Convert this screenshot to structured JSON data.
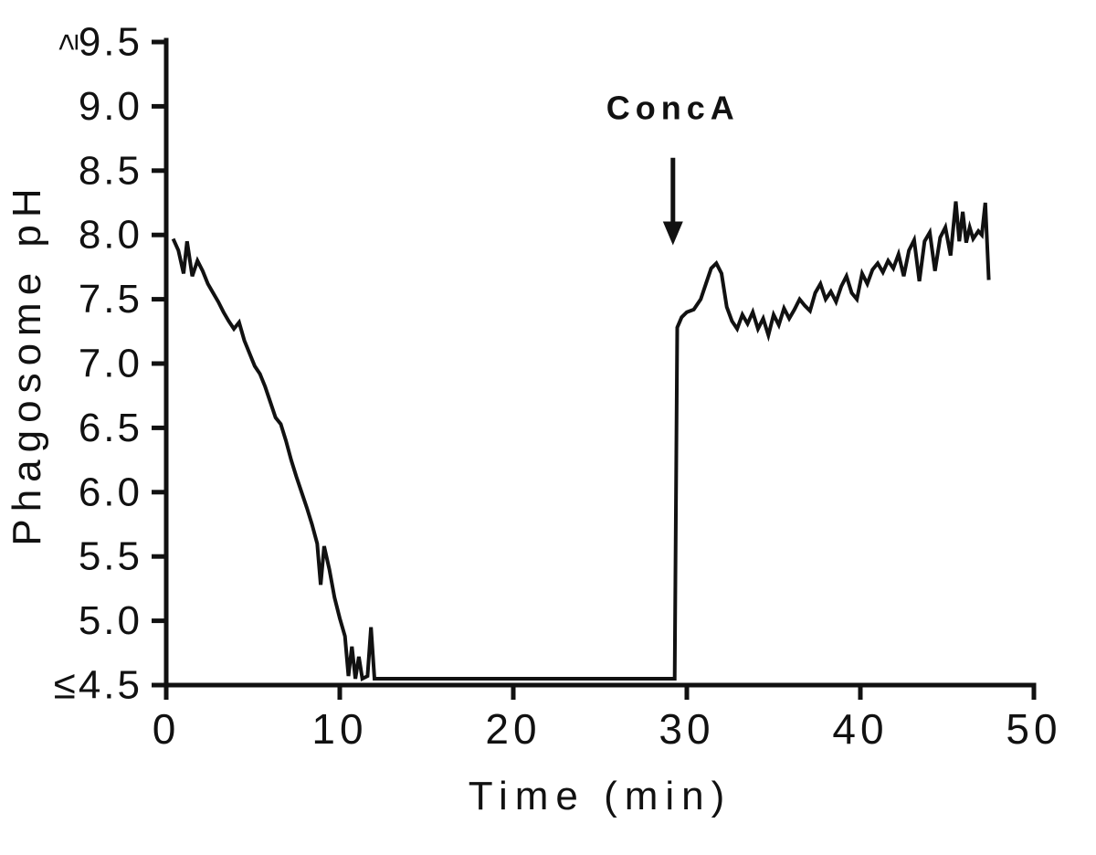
{
  "figure": {
    "background": "#ffffff",
    "line_color": "#111111",
    "axis_color": "#111111"
  },
  "chart_data": {
    "type": "line",
    "title": "",
    "xlabel": "Time (min)",
    "ylabel": "Phagosome pH",
    "xlim": [
      0,
      50
    ],
    "ylim": [
      4.5,
      9.5
    ],
    "grid": false,
    "legend": false,
    "x_ticks": [
      0,
      10,
      20,
      30,
      40,
      50
    ],
    "x_tick_labels": [
      "0",
      "10",
      "20",
      "30",
      "40",
      "50"
    ],
    "y_ticks": [
      4.5,
      5.0,
      5.5,
      6.0,
      6.5,
      7.0,
      7.5,
      8.0,
      8.5,
      9.0,
      9.5
    ],
    "y_tick_labels": [
      "≤4.5",
      "5.0",
      "5.5",
      "6.0",
      "6.5",
      "7.0",
      "7.5",
      "8.0",
      "8.5",
      "9.0",
      "9.5"
    ],
    "y_top_prefix": "≥",
    "annotation": {
      "label": "ConcA",
      "x": 29.2,
      "label_ph": 8.9,
      "arrow_from_ph": 8.6,
      "arrow_to_ph": 7.92
    },
    "series": [
      {
        "name": "Phagosome pH",
        "color": "#111111",
        "points": [
          [
            0.4,
            7.97
          ],
          [
            0.7,
            7.88
          ],
          [
            1.0,
            7.7
          ],
          [
            1.2,
            7.95
          ],
          [
            1.5,
            7.68
          ],
          [
            1.8,
            7.8
          ],
          [
            2.1,
            7.72
          ],
          [
            2.4,
            7.62
          ],
          [
            2.7,
            7.55
          ],
          [
            3.0,
            7.48
          ],
          [
            3.3,
            7.4
          ],
          [
            3.6,
            7.33
          ],
          [
            3.9,
            7.27
          ],
          [
            4.2,
            7.32
          ],
          [
            4.5,
            7.18
          ],
          [
            4.8,
            7.08
          ],
          [
            5.1,
            6.98
          ],
          [
            5.4,
            6.92
          ],
          [
            5.7,
            6.82
          ],
          [
            6.0,
            6.7
          ],
          [
            6.3,
            6.58
          ],
          [
            6.6,
            6.53
          ],
          [
            6.9,
            6.4
          ],
          [
            7.2,
            6.25
          ],
          [
            7.5,
            6.12
          ],
          [
            7.8,
            6.0
          ],
          [
            8.1,
            5.88
          ],
          [
            8.4,
            5.75
          ],
          [
            8.7,
            5.6
          ],
          [
            8.9,
            5.28
          ],
          [
            9.1,
            5.58
          ],
          [
            9.4,
            5.4
          ],
          [
            9.7,
            5.18
          ],
          [
            10.0,
            5.02
          ],
          [
            10.3,
            4.88
          ],
          [
            10.5,
            4.57
          ],
          [
            10.7,
            4.8
          ],
          [
            10.9,
            4.55
          ],
          [
            11.1,
            4.72
          ],
          [
            11.3,
            4.55
          ],
          [
            11.6,
            4.57
          ],
          [
            11.8,
            4.95
          ],
          [
            12.0,
            4.55
          ],
          [
            12.3,
            4.55
          ],
          [
            29.3,
            4.55
          ],
          [
            29.45,
            7.28
          ],
          [
            29.7,
            7.36
          ],
          [
            30.0,
            7.4
          ],
          [
            30.4,
            7.42
          ],
          [
            30.8,
            7.5
          ],
          [
            31.1,
            7.62
          ],
          [
            31.4,
            7.74
          ],
          [
            31.7,
            7.78
          ],
          [
            32.0,
            7.7
          ],
          [
            32.3,
            7.44
          ],
          [
            32.6,
            7.33
          ],
          [
            32.9,
            7.27
          ],
          [
            33.2,
            7.38
          ],
          [
            33.5,
            7.31
          ],
          [
            33.8,
            7.4
          ],
          [
            34.1,
            7.27
          ],
          [
            34.4,
            7.35
          ],
          [
            34.7,
            7.22
          ],
          [
            35.0,
            7.38
          ],
          [
            35.3,
            7.3
          ],
          [
            35.6,
            7.43
          ],
          [
            35.9,
            7.35
          ],
          [
            36.2,
            7.42
          ],
          [
            36.5,
            7.5
          ],
          [
            36.8,
            7.45
          ],
          [
            37.1,
            7.41
          ],
          [
            37.4,
            7.55
          ],
          [
            37.7,
            7.62
          ],
          [
            38.0,
            7.5
          ],
          [
            38.3,
            7.56
          ],
          [
            38.6,
            7.48
          ],
          [
            38.9,
            7.6
          ],
          [
            39.2,
            7.68
          ],
          [
            39.5,
            7.55
          ],
          [
            39.8,
            7.5
          ],
          [
            40.1,
            7.7
          ],
          [
            40.4,
            7.62
          ],
          [
            40.7,
            7.73
          ],
          [
            41.0,
            7.78
          ],
          [
            41.3,
            7.71
          ],
          [
            41.6,
            7.8
          ],
          [
            41.9,
            7.74
          ],
          [
            42.2,
            7.85
          ],
          [
            42.5,
            7.68
          ],
          [
            42.8,
            7.88
          ],
          [
            43.1,
            7.96
          ],
          [
            43.4,
            7.64
          ],
          [
            43.7,
            7.95
          ],
          [
            44.0,
            8.02
          ],
          [
            44.3,
            7.72
          ],
          [
            44.6,
            7.98
          ],
          [
            44.9,
            8.06
          ],
          [
            45.2,
            7.84
          ],
          [
            45.5,
            8.26
          ],
          [
            45.7,
            7.95
          ],
          [
            45.9,
            8.18
          ],
          [
            46.1,
            7.94
          ],
          [
            46.3,
            8.06
          ],
          [
            46.5,
            7.97
          ],
          [
            46.8,
            8.03
          ],
          [
            47.0,
            8.0
          ],
          [
            47.2,
            8.25
          ],
          [
            47.4,
            7.65
          ]
        ]
      }
    ]
  }
}
